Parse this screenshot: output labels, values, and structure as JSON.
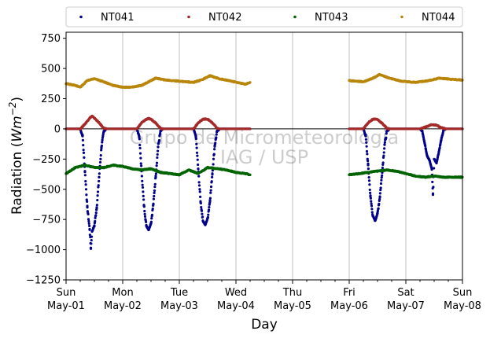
{
  "chart_data": {
    "type": "scatter",
    "title": "",
    "xlabel": "Day",
    "ylabel": "Radiation (Wm⁻²)",
    "ylabel_parts": {
      "prefix": "Radiation (",
      "unit_base": "Wm",
      "unit_exp": "−2",
      "suffix": ")"
    },
    "xlim": [
      "2022-05-01",
      "2022-05-08"
    ],
    "ylim": [
      -1250,
      800
    ],
    "yticks": [
      -1250,
      -1000,
      -750,
      -500,
      -250,
      0,
      250,
      500,
      750
    ],
    "ytick_labels": [
      "−1250",
      "−1000",
      "−750",
      "−500",
      "−250",
      "0",
      "250",
      "500",
      "750"
    ],
    "xticks": [
      {
        "day": "Sun",
        "date": "May-01"
      },
      {
        "day": "Mon",
        "date": "May-02"
      },
      {
        "day": "Tue",
        "date": "May-03"
      },
      {
        "day": "Wed",
        "date": "May-04"
      },
      {
        "day": "Thu",
        "date": "May-05"
      },
      {
        "day": "Fri",
        "date": "May-06"
      },
      {
        "day": "Sat",
        "date": "May-07"
      },
      {
        "day": "Sun",
        "date": "May-08"
      }
    ],
    "grid": "vertical",
    "reference_line": 0,
    "legend_position": "top",
    "watermark": [
      "Grupo de Micrometeorologia",
      "IAG / USP"
    ],
    "series": [
      {
        "name": "NT041",
        "color": "#00008b",
        "points": [
          [
            "2022-05-01 00:00",
            0
          ],
          [
            "2022-05-01 06:00",
            0
          ],
          [
            "2022-05-01 07:00",
            -60
          ],
          [
            "2022-05-01 08:00",
            -350
          ],
          [
            "2022-05-01 09:00",
            -650
          ],
          [
            "2022-05-01 10:00",
            -830
          ],
          [
            "2022-05-01 11:00",
            -850
          ],
          [
            "2022-05-01 12:00",
            -800
          ],
          [
            "2022-05-01 13:00",
            -650
          ],
          [
            "2022-05-01 14:00",
            -400
          ],
          [
            "2022-05-01 15:00",
            -150
          ],
          [
            "2022-05-01 16:00",
            -20
          ],
          [
            "2022-05-01 17:00",
            0
          ],
          [
            "2022-05-01 10:30",
            -985
          ],
          [
            "2022-05-02 00:00",
            0
          ],
          [
            "2022-05-02 06:00",
            0
          ],
          [
            "2022-05-02 07:00",
            -60
          ],
          [
            "2022-05-02 08:00",
            -350
          ],
          [
            "2022-05-02 09:00",
            -630
          ],
          [
            "2022-05-02 10:00",
            -800
          ],
          [
            "2022-05-02 11:00",
            -835
          ],
          [
            "2022-05-02 12:00",
            -780
          ],
          [
            "2022-05-02 13:00",
            -620
          ],
          [
            "2022-05-02 14:00",
            -390
          ],
          [
            "2022-05-02 15:00",
            -150
          ],
          [
            "2022-05-02 16:00",
            -20
          ],
          [
            "2022-05-02 17:00",
            0
          ],
          [
            "2022-05-03 00:00",
            0
          ],
          [
            "2022-05-03 06:00",
            0
          ],
          [
            "2022-05-03 07:00",
            -60
          ],
          [
            "2022-05-03 08:00",
            -330
          ],
          [
            "2022-05-03 09:00",
            -600
          ],
          [
            "2022-05-03 10:00",
            -760
          ],
          [
            "2022-05-03 11:00",
            -795
          ],
          [
            "2022-05-03 12:00",
            -740
          ],
          [
            "2022-05-03 13:00",
            -590
          ],
          [
            "2022-05-03 14:00",
            -370
          ],
          [
            "2022-05-03 15:00",
            -140
          ],
          [
            "2022-05-03 16:00",
            -20
          ],
          [
            "2022-05-03 17:00",
            0
          ],
          [
            "2022-05-04 00:00",
            0
          ],
          [
            "2022-05-04 06:00",
            0
          ],
          [
            "2022-05-06 00:00",
            0
          ],
          [
            "2022-05-06 06:00",
            0
          ],
          [
            "2022-05-06 07:00",
            -60
          ],
          [
            "2022-05-06 08:00",
            -300
          ],
          [
            "2022-05-06 09:00",
            -560
          ],
          [
            "2022-05-06 10:00",
            -720
          ],
          [
            "2022-05-06 11:00",
            -760
          ],
          [
            "2022-05-06 12:00",
            -700
          ],
          [
            "2022-05-06 13:00",
            -560
          ],
          [
            "2022-05-06 14:00",
            -350
          ],
          [
            "2022-05-06 15:00",
            -130
          ],
          [
            "2022-05-06 16:00",
            -20
          ],
          [
            "2022-05-06 17:00",
            0
          ],
          [
            "2022-05-07 00:00",
            0
          ],
          [
            "2022-05-07 06:00",
            0
          ],
          [
            "2022-05-07 07:00",
            -20
          ],
          [
            "2022-05-07 08:00",
            -120
          ],
          [
            "2022-05-07 09:00",
            -220
          ],
          [
            "2022-05-07 10:00",
            -260
          ],
          [
            "2022-05-07 11:00",
            -330
          ],
          [
            "2022-05-07 12:00",
            -250
          ],
          [
            "2022-05-07 13:00",
            -280
          ],
          [
            "2022-05-07 14:00",
            -190
          ],
          [
            "2022-05-07 15:00",
            -90
          ],
          [
            "2022-05-07 16:00",
            -10
          ],
          [
            "2022-05-07 11:30",
            -545
          ],
          [
            "2022-05-07 17:00",
            0
          ],
          [
            "2022-05-08 00:00",
            0
          ]
        ]
      },
      {
        "name": "NT042",
        "color": "#a52a2a",
        "points": [
          [
            "2022-05-01 00:00",
            0
          ],
          [
            "2022-05-01 06:00",
            0
          ],
          [
            "2022-05-01 08:00",
            40
          ],
          [
            "2022-05-01 10:00",
            90
          ],
          [
            "2022-05-01 11:00",
            105
          ],
          [
            "2022-05-01 12:00",
            90
          ],
          [
            "2022-05-01 14:00",
            50
          ],
          [
            "2022-05-01 16:00",
            5
          ],
          [
            "2022-05-01 17:00",
            0
          ],
          [
            "2022-05-02 00:00",
            0
          ],
          [
            "2022-05-02 06:00",
            0
          ],
          [
            "2022-05-02 08:00",
            50
          ],
          [
            "2022-05-02 10:00",
            80
          ],
          [
            "2022-05-02 11:00",
            85
          ],
          [
            "2022-05-02 12:00",
            80
          ],
          [
            "2022-05-02 14:00",
            50
          ],
          [
            "2022-05-02 16:00",
            5
          ],
          [
            "2022-05-02 17:00",
            0
          ],
          [
            "2022-05-03 00:00",
            0
          ],
          [
            "2022-05-03 06:00",
            0
          ],
          [
            "2022-05-03 08:00",
            50
          ],
          [
            "2022-05-03 10:00",
            80
          ],
          [
            "2022-05-03 11:00",
            82
          ],
          [
            "2022-05-03 12:00",
            80
          ],
          [
            "2022-05-03 14:00",
            50
          ],
          [
            "2022-05-03 16:00",
            5
          ],
          [
            "2022-05-03 17:00",
            0
          ],
          [
            "2022-05-04 00:00",
            0
          ],
          [
            "2022-05-04 06:00",
            0
          ],
          [
            "2022-05-06 00:00",
            0
          ],
          [
            "2022-05-06 06:00",
            0
          ],
          [
            "2022-05-06 08:00",
            50
          ],
          [
            "2022-05-06 10:00",
            80
          ],
          [
            "2022-05-06 11:00",
            82
          ],
          [
            "2022-05-06 12:00",
            78
          ],
          [
            "2022-05-06 14:00",
            45
          ],
          [
            "2022-05-06 16:00",
            5
          ],
          [
            "2022-05-06 17:00",
            0
          ],
          [
            "2022-05-07 00:00",
            0
          ],
          [
            "2022-05-07 06:00",
            0
          ],
          [
            "2022-05-07 09:00",
            20
          ],
          [
            "2022-05-07 11:00",
            35
          ],
          [
            "2022-05-07 13:00",
            30
          ],
          [
            "2022-05-07 15:00",
            10
          ],
          [
            "2022-05-07 17:00",
            0
          ],
          [
            "2022-05-08 00:00",
            0
          ]
        ]
      },
      {
        "name": "NT043",
        "color": "#006400",
        "points": [
          [
            "2022-05-01 00:00",
            -370
          ],
          [
            "2022-05-01 04:00",
            -320
          ],
          [
            "2022-05-01 08:00",
            -300
          ],
          [
            "2022-05-01 12:00",
            -320
          ],
          [
            "2022-05-01 16:00",
            -320
          ],
          [
            "2022-05-01 20:00",
            -300
          ],
          [
            "2022-05-02 00:00",
            -310
          ],
          [
            "2022-05-02 04:00",
            -330
          ],
          [
            "2022-05-02 08:00",
            -340
          ],
          [
            "2022-05-02 12:00",
            -330
          ],
          [
            "2022-05-02 16:00",
            -360
          ],
          [
            "2022-05-02 20:00",
            -370
          ],
          [
            "2022-05-03 00:00",
            -380
          ],
          [
            "2022-05-03 04:00",
            -340
          ],
          [
            "2022-05-03 08:00",
            -370
          ],
          [
            "2022-05-03 12:00",
            -320
          ],
          [
            "2022-05-03 16:00",
            -330
          ],
          [
            "2022-05-03 20:00",
            -340
          ],
          [
            "2022-05-04 00:00",
            -360
          ],
          [
            "2022-05-04 04:00",
            -370
          ],
          [
            "2022-05-04 06:00",
            -380
          ],
          [
            "2022-05-06 00:00",
            -380
          ],
          [
            "2022-05-06 04:00",
            -370
          ],
          [
            "2022-05-06 08:00",
            -360
          ],
          [
            "2022-05-06 12:00",
            -350
          ],
          [
            "2022-05-06 16:00",
            -340
          ],
          [
            "2022-05-06 20:00",
            -350
          ],
          [
            "2022-05-07 00:00",
            -370
          ],
          [
            "2022-05-07 04:00",
            -390
          ],
          [
            "2022-05-07 08:00",
            -400
          ],
          [
            "2022-05-07 12:00",
            -390
          ],
          [
            "2022-05-07 16:00",
            -400
          ],
          [
            "2022-05-07 20:00",
            -400
          ],
          [
            "2022-05-08 00:00",
            -400
          ]
        ]
      },
      {
        "name": "NT044",
        "color": "#b8860b",
        "points": [
          [
            "2022-05-01 00:00",
            375
          ],
          [
            "2022-05-01 04:00",
            360
          ],
          [
            "2022-05-01 06:00",
            345
          ],
          [
            "2022-05-01 09:00",
            400
          ],
          [
            "2022-05-01 12:00",
            415
          ],
          [
            "2022-05-01 16:00",
            390
          ],
          [
            "2022-05-01 20:00",
            360
          ],
          [
            "2022-05-02 00:00",
            345
          ],
          [
            "2022-05-02 04:00",
            345
          ],
          [
            "2022-05-02 08:00",
            360
          ],
          [
            "2022-05-02 12:00",
            400
          ],
          [
            "2022-05-02 14:00",
            420
          ],
          [
            "2022-05-02 18:00",
            405
          ],
          [
            "2022-05-03 00:00",
            395
          ],
          [
            "2022-05-03 06:00",
            385
          ],
          [
            "2022-05-03 10:00",
            410
          ],
          [
            "2022-05-03 13:00",
            440
          ],
          [
            "2022-05-03 17:00",
            415
          ],
          [
            "2022-05-03 22:00",
            395
          ],
          [
            "2022-05-04 04:00",
            370
          ],
          [
            "2022-05-04 06:00",
            385
          ],
          [
            "2022-05-06 00:00",
            400
          ],
          [
            "2022-05-06 06:00",
            390
          ],
          [
            "2022-05-06 10:00",
            420
          ],
          [
            "2022-05-06 13:00",
            450
          ],
          [
            "2022-05-06 17:00",
            420
          ],
          [
            "2022-05-06 22:00",
            395
          ],
          [
            "2022-05-07 04:00",
            385
          ],
          [
            "2022-05-07 10:00",
            400
          ],
          [
            "2022-05-07 14:00",
            420
          ],
          [
            "2022-05-07 20:00",
            410
          ],
          [
            "2022-05-08 00:00",
            405
          ]
        ]
      }
    ]
  }
}
